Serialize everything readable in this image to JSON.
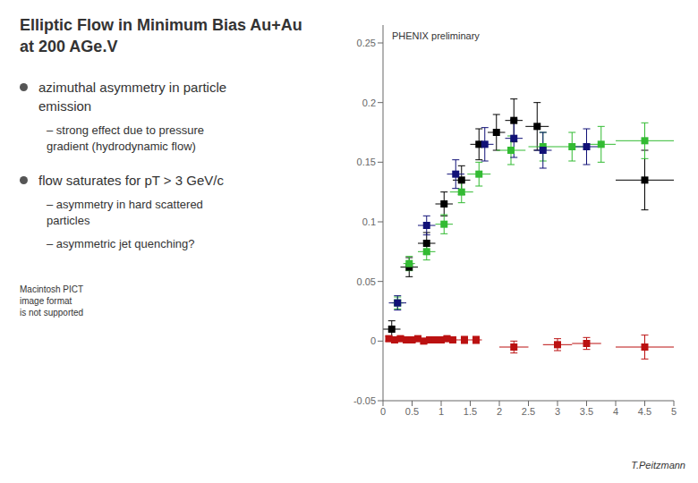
{
  "chart_data": {
    "type": "scatter",
    "title": "Elliptic Flow in Minimum Bias Au+Au\nat 200 AGe.V",
    "annotations": [
      "azimuthal asymmetry in particle\nemission",
      "– strong effect due to pressure\ngradient (hydrodynamic flow)",
      "flow saturates for pT > 3 GeV/c",
      "– asymmetry in hard scattered\nparticles",
      "– asymmetric jet quenching?",
      "Macintosh PICT\nimage format\nis not supported",
      "PHENIX preliminary",
      "T.Peitzmann"
    ],
    "xlim": [
      0,
      5
    ],
    "ylim": [
      -0.05,
      0.265
    ],
    "xticks": [
      0,
      0.5,
      1,
      1.5,
      2,
      2.5,
      3,
      3.5,
      4,
      4.5,
      5
    ],
    "yticks": [
      -0.05,
      0,
      0.05,
      0.1,
      0.15,
      0.2,
      0.25
    ],
    "series": [
      {
        "color": "#000000",
        "marker": "square",
        "x": [
          0.15,
          0.45,
          0.75,
          1.05,
          1.35,
          1.65,
          1.95,
          2.25,
          2.65,
          4.5
        ],
        "values": [
          0.01,
          0.062,
          0.082,
          0.115,
          0.135,
          0.165,
          0.175,
          0.185,
          0.18,
          0.135
        ],
        "xerr": [
          0.15,
          0.15,
          0.15,
          0.15,
          0.15,
          0.15,
          0.15,
          0.15,
          0.2,
          0.5
        ],
        "yerr": [
          0.007,
          0.008,
          0.009,
          0.01,
          0.012,
          0.013,
          0.015,
          0.018,
          0.02,
          0.025
        ]
      },
      {
        "color": "#33BB33",
        "marker": "square",
        "x": [
          0.25,
          0.45,
          0.75,
          1.05,
          1.35,
          1.65,
          2.2,
          2.75,
          3.25,
          3.75,
          4.5
        ],
        "values": [
          0.032,
          0.065,
          0.075,
          0.098,
          0.125,
          0.14,
          0.16,
          0.163,
          0.163,
          0.165,
          0.168
        ],
        "xerr": [
          0.1,
          0.1,
          0.15,
          0.15,
          0.2,
          0.2,
          0.25,
          0.25,
          0.25,
          0.25,
          0.5
        ],
        "yerr": [
          0.005,
          0.006,
          0.007,
          0.008,
          0.009,
          0.01,
          0.012,
          0.012,
          0.012,
          0.015,
          0.015
        ]
      },
      {
        "color": "#111177",
        "marker": "square",
        "x": [
          0.25,
          0.75,
          1.25,
          1.75,
          2.25,
          2.75,
          3.5
        ],
        "values": [
          0.032,
          0.097,
          0.14,
          0.165,
          0.17,
          0.16,
          0.163
        ],
        "xerr": [
          0.15,
          0.15,
          0.15,
          0.15,
          0.15,
          0.15,
          0.3
        ],
        "yerr": [
          0.006,
          0.008,
          0.012,
          0.014,
          0.016,
          0.015,
          0.015
        ]
      },
      {
        "color": "#BB1111",
        "marker": "square",
        "x": [
          0.1,
          0.2,
          0.3,
          0.4,
          0.5,
          0.6,
          0.7,
          0.8,
          0.9,
          1.0,
          1.1,
          1.2,
          1.4,
          1.6,
          2.25,
          3.0,
          3.5,
          4.5
        ],
        "values": [
          0.002,
          0.001,
          0.002,
          0.001,
          0.001,
          0.002,
          0.0,
          0.001,
          0.001,
          0.001,
          0.002,
          0.001,
          0.001,
          0.001,
          -0.005,
          -0.003,
          -0.002,
          -0.005
        ],
        "xerr": [
          0.05,
          0.05,
          0.05,
          0.05,
          0.05,
          0.05,
          0.05,
          0.05,
          0.05,
          0.05,
          0.05,
          0.1,
          0.1,
          0.1,
          0.25,
          0.25,
          0.25,
          0.5
        ],
        "yerr": [
          0.002,
          0.002,
          0.002,
          0.002,
          0.002,
          0.002,
          0.002,
          0.002,
          0.002,
          0.002,
          0.002,
          0.002,
          0.003,
          0.003,
          0.005,
          0.005,
          0.005,
          0.01
        ]
      }
    ]
  }
}
